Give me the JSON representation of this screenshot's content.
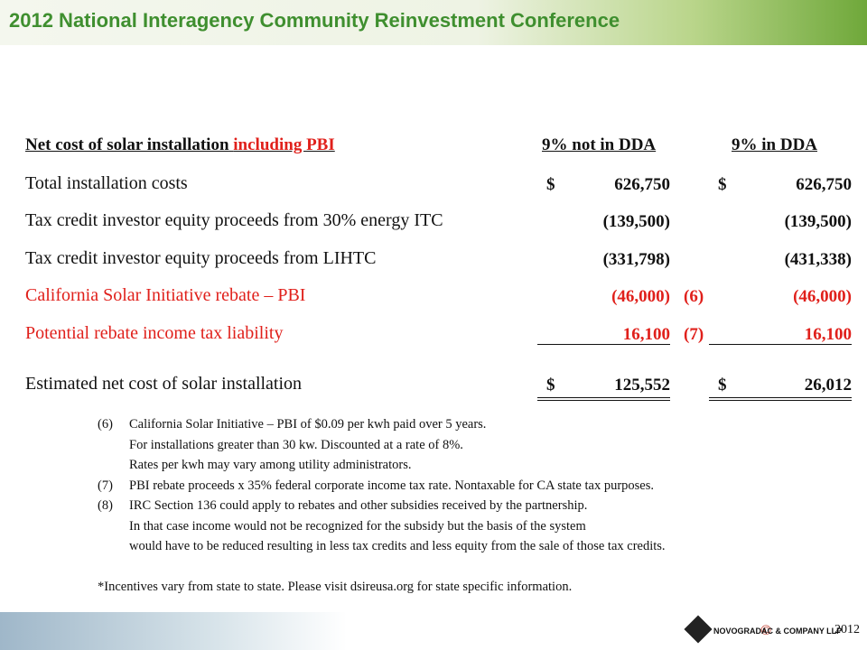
{
  "header": {
    "title": "2012 National Interagency Community Reinvestment Conference"
  },
  "table": {
    "title": "Net cost of solar installation",
    "title_highlight": "including PBI",
    "columns": [
      "9% not in DDA",
      "9% in DDA"
    ],
    "rows": [
      {
        "label": "Total installation costs",
        "currency": "$",
        "values": [
          "626,750",
          "626,750"
        ]
      },
      {
        "label": "Tax credit investor equity proceeds from 30% energy ITC",
        "values": [
          "(139,500)",
          "(139,500)"
        ]
      },
      {
        "label": "Tax credit investor equity proceeds from LIHTC",
        "values": [
          "(331,798)",
          "(431,338)"
        ]
      },
      {
        "label": "California Solar Initiative rebate – PBI",
        "values": [
          "(46,000)",
          "(46,000)"
        ],
        "note": "(6)",
        "highlight": true
      },
      {
        "label": "Potential rebate income tax liability",
        "values": [
          "16,100",
          "16,100"
        ],
        "note": "(7)",
        "highlight": true
      }
    ],
    "total": {
      "label": "Estimated net cost of solar installation",
      "currency": "$",
      "values": [
        "125,552",
        "26,012"
      ]
    }
  },
  "footnotes": [
    {
      "marker": "(6)",
      "lines": [
        "California Solar Initiative – PBI of $0.09 per kwh paid over 5 years.",
        "For installations greater than  30 kw.  Discounted at a rate of 8%.",
        "Rates per kwh may vary among utility administrators."
      ]
    },
    {
      "marker": "(7)",
      "lines": [
        "PBI rebate proceeds x 35% federal corporate income tax rate.  Nontaxable for CA state tax purposes."
      ]
    },
    {
      "marker": "(8)",
      "lines": [
        "IRC Section 136 could apply to rebates and other subsidies received by the partnership.",
        "In that case income would not be recognized for the subsidy but the basis of the system",
        "would have to be reduced resulting in less tax credits and less equity from the sale of those tax credits."
      ]
    }
  ],
  "disclaimer": "*Incentives vary from state to state.  Please visit dsireusa.org for state specific information.",
  "footer": {
    "copyright": "©",
    "company": "NOVOGRADAC & COMPANY LLP",
    "year": "2012"
  }
}
